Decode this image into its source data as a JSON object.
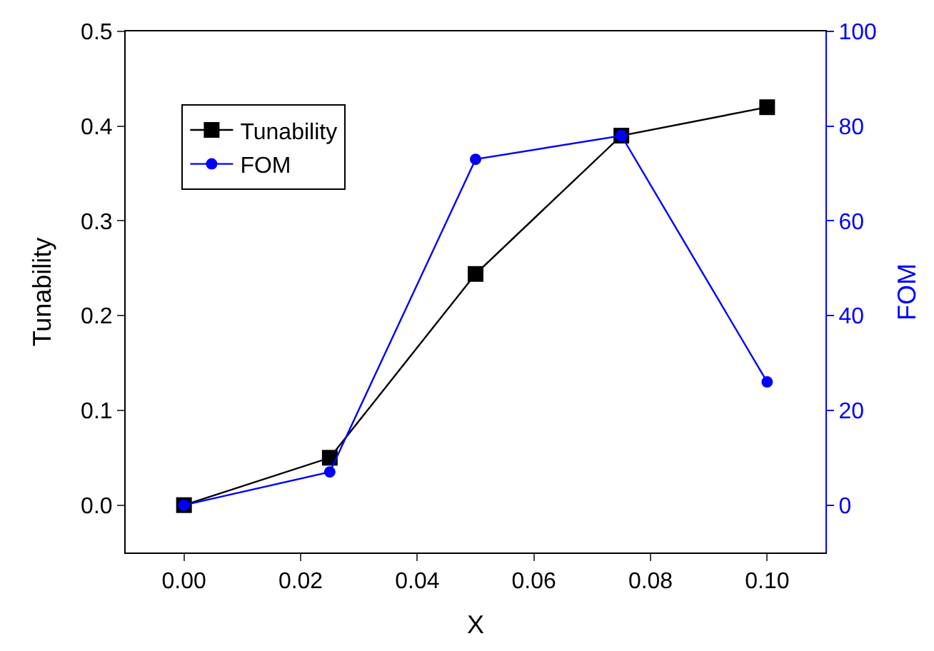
{
  "chart_data": {
    "type": "line",
    "xlabel": "X",
    "ylabel": "Tunability",
    "y2label": "FOM",
    "x": [
      0.0,
      0.025,
      0.05,
      0.075,
      0.1
    ],
    "series": [
      {
        "name": "Tunability",
        "color": "#000000",
        "marker": "square",
        "values": [
          0.0,
          0.05,
          0.244,
          0.39,
          0.42
        ]
      },
      {
        "name": "FOM",
        "color": "#0000ff",
        "marker": "circle",
        "axis": "y2",
        "values": [
          0,
          7,
          73,
          78,
          26
        ]
      }
    ],
    "xlim": [
      -0.01,
      0.11
    ],
    "xticks": [
      {
        "value": 0,
        "label": "0.00"
      },
      {
        "value": 0.02,
        "label": "0.02"
      },
      {
        "value": 0.04,
        "label": "0.04"
      },
      {
        "value": 0.06,
        "label": "0.06"
      },
      {
        "value": 0.08,
        "label": "0.08"
      },
      {
        "value": 0.1,
        "label": "0.10"
      }
    ],
    "ylim": [
      -0.05,
      0.5
    ],
    "yticks": [
      {
        "value": 0,
        "label": "0.0"
      },
      0.1,
      0.2,
      0.3,
      0.4,
      0.5
    ],
    "y2lim": [
      -10,
      100
    ],
    "y2ticks": [
      0,
      20,
      40,
      60,
      80,
      100
    ],
    "grid": false,
    "legend": "top left"
  }
}
